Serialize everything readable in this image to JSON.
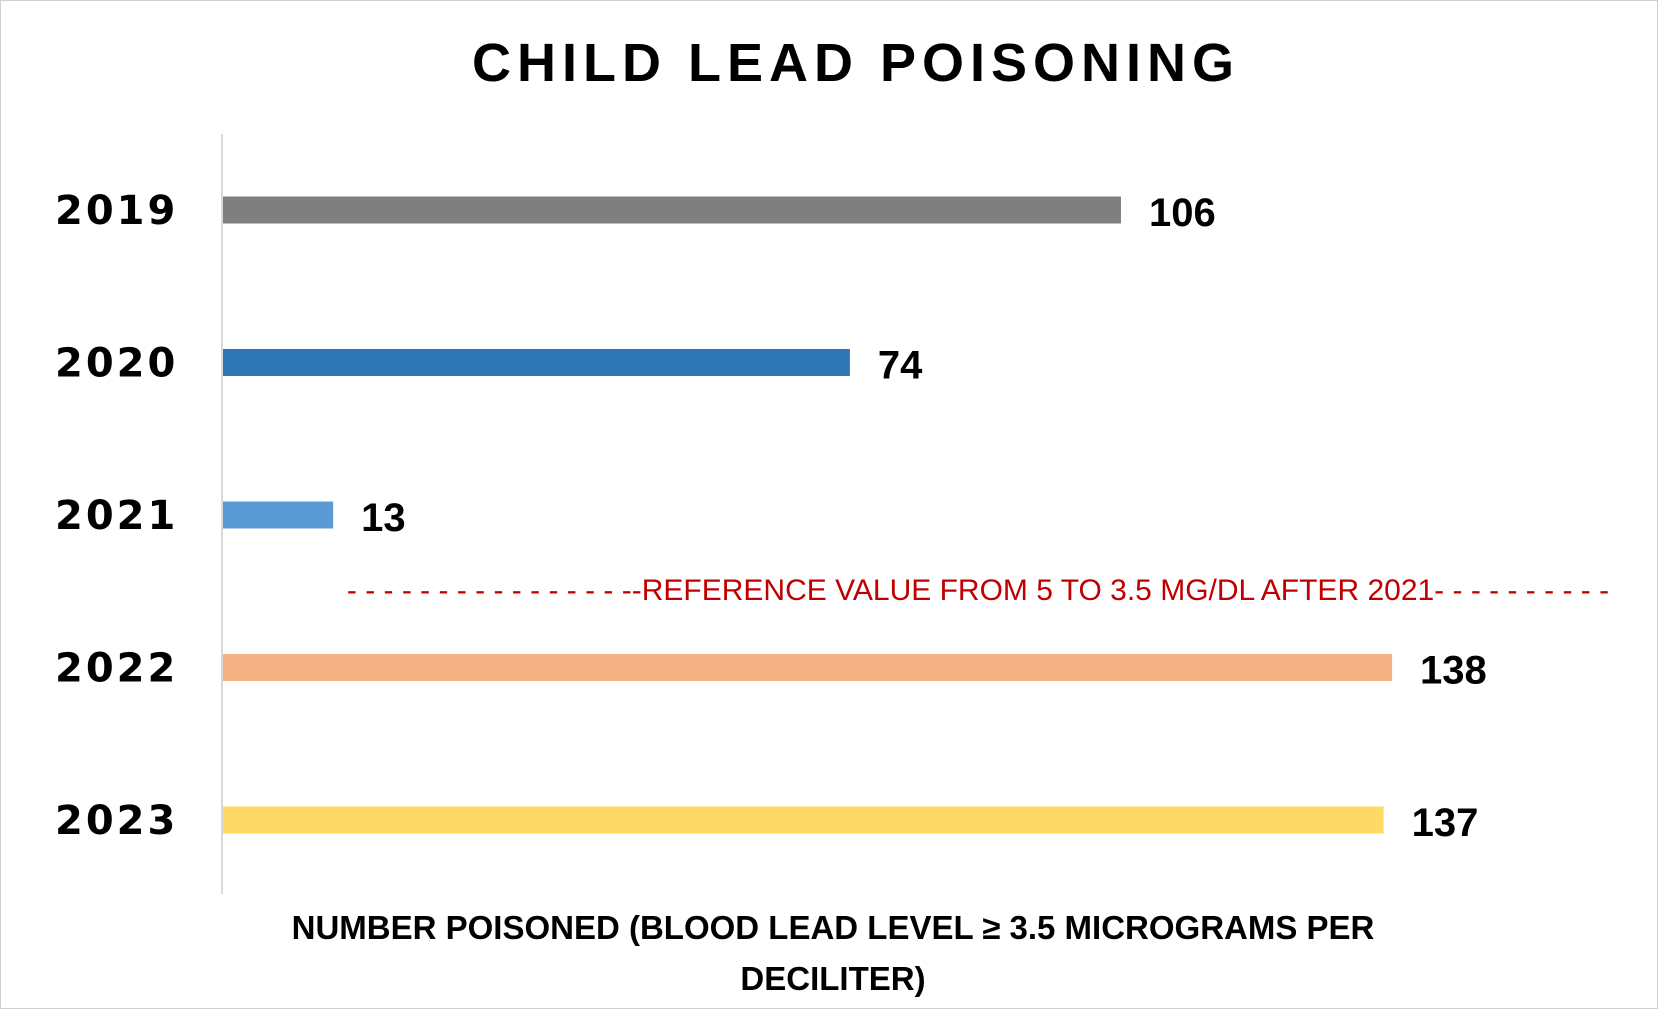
{
  "chart_data": {
    "type": "bar",
    "orientation": "horizontal",
    "title": "CHILD LEAD POISONING",
    "xlabel": "NUMBER POISONED (BLOOD LEAD LEVEL ≥ 3.5  MICROGRAMS PER DECILITER)",
    "xlabel_lines": [
      "NUMBER POISONED (BLOOD LEAD LEVEL ≥ 3.5  MICROGRAMS PER",
      "DECILITER)"
    ],
    "ylabel": "",
    "categories": [
      "2019",
      "2020",
      "2021",
      "2022",
      "2023"
    ],
    "values": [
      106,
      74,
      13,
      138,
      137
    ],
    "data_labels": [
      "106",
      "74",
      "13",
      "138",
      "137"
    ],
    "bar_colors": [
      "#7f7f7f",
      "#2e75b6",
      "#5b9bd5",
      "#f4b183",
      "#ffd966"
    ],
    "xlim": [
      0,
      140
    ],
    "grid": false,
    "annotation": {
      "text": "- - - - - - - - - - - - - - - --REFERENCE VALUE FROM 5 TO 3.5 MG/DL AFTER 2021- - - - - - - - - -",
      "color": "#c00000"
    }
  }
}
